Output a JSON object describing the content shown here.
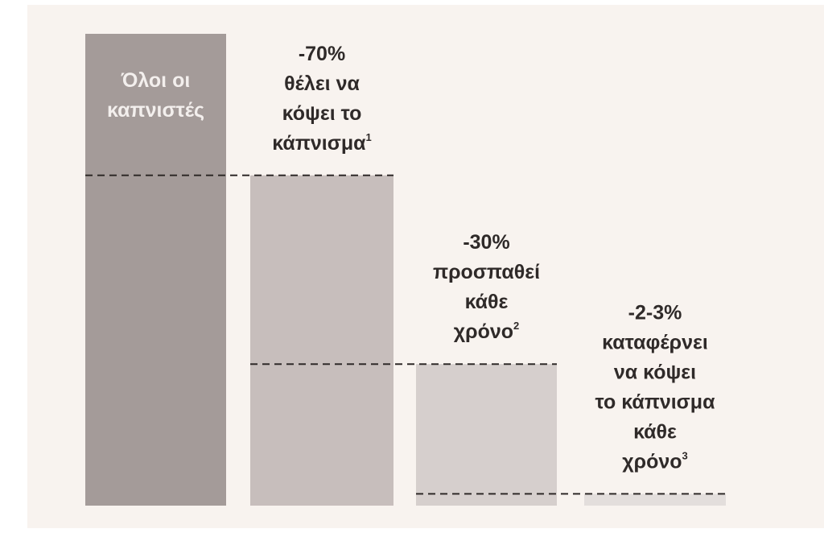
{
  "colors": {
    "background": "#f8f3ef",
    "bar_all": "#a49b99",
    "bar_want": "#c7bebc",
    "bar_try": "#d6cfcd",
    "bar_succeed": "#e3dedc",
    "dash": "#2f2a29",
    "label_dark": "#2f2a29",
    "label_light": "#f3efed"
  },
  "chart_data": {
    "type": "bar",
    "categories": [
      "Όλοι οι καπνιστές",
      "θέλει να κόψει το κάπνισμα",
      "προσπαθεί κάθε χρόνο",
      "καταφέρνει να κόψει το κάπνισμα κάθε χρόνο"
    ],
    "values": [
      100,
      70,
      30,
      2.5
    ],
    "value_labels": [
      "",
      "-70%",
      "-30%",
      "-2-3%"
    ],
    "ylim": [
      0,
      100
    ],
    "grid": false,
    "legend": "none",
    "bars": [
      {
        "name": "all-smokers",
        "value": 100,
        "color_key": "bar_all",
        "label_inside": true,
        "lines": [
          {
            "text": "Όλοι οι"
          },
          {
            "text": "καπνιστές"
          }
        ]
      },
      {
        "name": "want-to-quit",
        "value": 70,
        "color_key": "bar_want",
        "label_inside": false,
        "lines": [
          {
            "text": "-70%"
          },
          {
            "text": "θέλει να"
          },
          {
            "text": "κόψει το"
          },
          {
            "text": "κάπνισμα",
            "sup": "1"
          }
        ]
      },
      {
        "name": "try-each-year",
        "value": 30,
        "color_key": "bar_try",
        "label_inside": false,
        "lines": [
          {
            "text": "-30%"
          },
          {
            "text": "προσπαθεί"
          },
          {
            "text": "κάθε"
          },
          {
            "text": "χρόνο",
            "sup": "2"
          }
        ]
      },
      {
        "name": "succeed-each-year",
        "value": 2.5,
        "color_key": "bar_succeed",
        "label_inside": false,
        "lines": [
          {
            "text": "-2-3%"
          },
          {
            "text": "καταφέρνει"
          },
          {
            "text": "να κόψει"
          },
          {
            "text": "το κάπνισμα"
          },
          {
            "text": "κάθε"
          },
          {
            "text": "χρόνο",
            "sup": "3"
          }
        ]
      }
    ]
  }
}
